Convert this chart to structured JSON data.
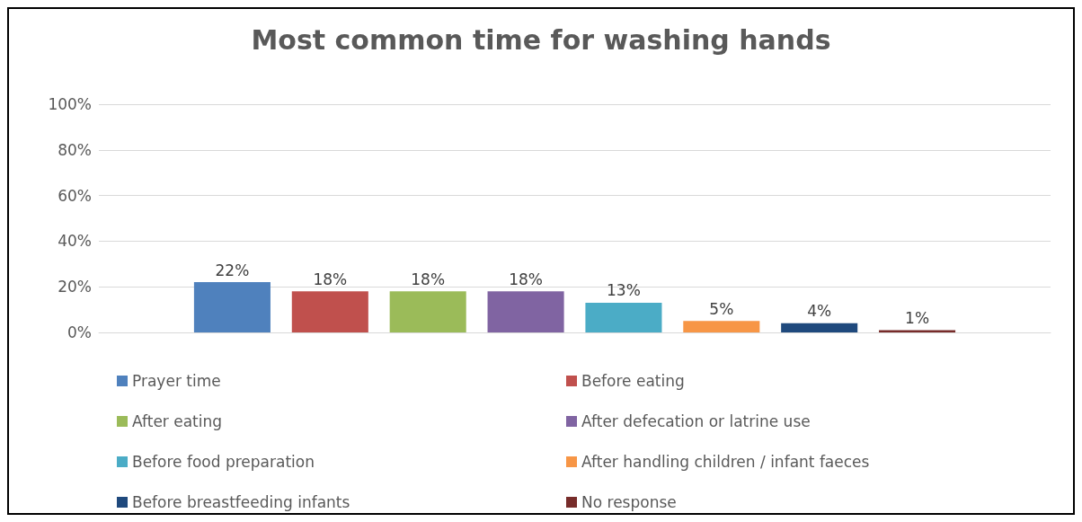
{
  "chart_data": {
    "type": "bar",
    "title": "Most common time for washing hands",
    "categories": [
      null
    ],
    "series": [
      {
        "name": "Prayer time",
        "color": "#4f81bd",
        "values": [
          22
        ],
        "value_labels": [
          "22%"
        ]
      },
      {
        "name": "Before eating",
        "color": "#c0504d",
        "values": [
          18
        ],
        "value_labels": [
          "18%"
        ]
      },
      {
        "name": "After eating",
        "color": "#9bbb59",
        "values": [
          18
        ],
        "value_labels": [
          "18%"
        ]
      },
      {
        "name": "After defecation or latrine use",
        "color": "#8064a2",
        "values": [
          18
        ],
        "value_labels": [
          "18%"
        ]
      },
      {
        "name": "Before food preparation",
        "color": "#4bacc6",
        "values": [
          13
        ],
        "value_labels": [
          "13%"
        ]
      },
      {
        "name": "After handling children / infant faeces",
        "color": "#f79646",
        "values": [
          5
        ],
        "value_labels": [
          "5%"
        ]
      },
      {
        "name": "Before breastfeeding infants",
        "color": "#1f497d",
        "values": [
          4
        ],
        "value_labels": [
          "4%"
        ]
      },
      {
        "name": "No response",
        "color": "#772c2a",
        "values": [
          1
        ],
        "value_labels": [
          "1%"
        ]
      }
    ],
    "ylim": [
      0,
      100
    ],
    "yticks": [
      {
        "value": 0,
        "label": "0%"
      },
      {
        "value": 20,
        "label": "20%"
      },
      {
        "value": 40,
        "label": "40%"
      },
      {
        "value": 60,
        "label": "60%"
      },
      {
        "value": 80,
        "label": "80%"
      },
      {
        "value": 100,
        "label": "100%"
      }
    ],
    "grid": "y",
    "legend": "bottom"
  }
}
